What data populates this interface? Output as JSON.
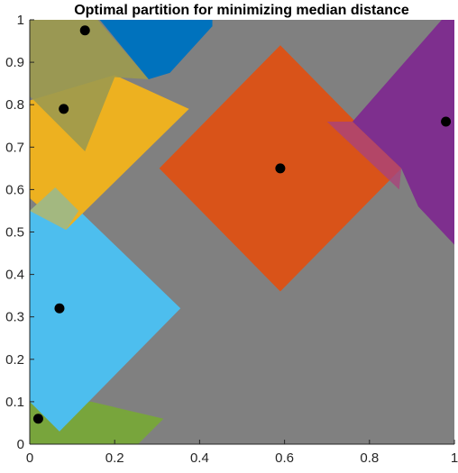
{
  "chart_data": {
    "type": "scatter",
    "title": "Optimal partition for minimizing median distance",
    "xlabel": "",
    "ylabel": "",
    "xlim": [
      0,
      1
    ],
    "ylim": [
      0,
      1
    ],
    "grid": false,
    "background_color": "#808080",
    "x_ticks": [
      0,
      0.2,
      0.4,
      0.6,
      0.8,
      1
    ],
    "x_tick_labels": [
      "0",
      "0.2",
      "0.4",
      "0.6",
      "0.8",
      "1"
    ],
    "y_ticks": [
      0,
      0.1,
      0.2,
      0.3,
      0.4,
      0.5,
      0.6,
      0.7,
      0.8,
      0.9,
      1
    ],
    "y_tick_labels": [
      "0",
      "0.1",
      "0.2",
      "0.3",
      "0.4",
      "0.5",
      "0.6",
      "0.7",
      "0.8",
      "0.9",
      "1"
    ],
    "points": [
      {
        "x": 0.13,
        "y": 0.975
      },
      {
        "x": 0.08,
        "y": 0.79
      },
      {
        "x": 0.59,
        "y": 0.65
      },
      {
        "x": 0.98,
        "y": 0.76
      },
      {
        "x": 0.07,
        "y": 0.32
      },
      {
        "x": 0.02,
        "y": 0.06
      }
    ],
    "regions": [
      {
        "color": "#77AC30",
        "opacity": 0.85,
        "vertices": [
          [
            0,
            0.1
          ],
          [
            0.145,
            0.1
          ],
          [
            0.315,
            0.06
          ],
          [
            0.255,
            0
          ],
          [
            0,
            0
          ]
        ]
      },
      {
        "color": "#4DBEEE",
        "opacity": 1.0,
        "vertices": [
          [
            0,
            0.55
          ],
          [
            0.06,
            0.605
          ],
          [
            0.355,
            0.32
          ],
          [
            0.07,
            0.03
          ],
          [
            0,
            0.1
          ]
        ]
      },
      {
        "color": "#EDB120",
        "opacity": 1.0,
        "vertices": [
          [
            0,
            0.81
          ],
          [
            0.2,
            0.87
          ],
          [
            0.375,
            0.79
          ],
          [
            0.085,
            0.505
          ],
          [
            0,
            0.58
          ]
        ]
      },
      {
        "color": "#9C9A4E",
        "opacity": 0.9,
        "vertices": [
          [
            0,
            1
          ],
          [
            0.16,
            1
          ],
          [
            0.28,
            0.86
          ],
          [
            0.2,
            0.865
          ],
          [
            0.13,
            0.69
          ],
          [
            0,
            0.82
          ]
        ]
      },
      {
        "color": "#A3B880",
        "opacity": 1.0,
        "vertices": [
          [
            0.0,
            0.55
          ],
          [
            0.06,
            0.605
          ],
          [
            0.115,
            0.55
          ],
          [
            0.085,
            0.505
          ]
        ]
      },
      {
        "color": "#0072BD",
        "opacity": 1.0,
        "vertices": [
          [
            0.165,
            1
          ],
          [
            0.43,
            1
          ],
          [
            0.43,
            0.985
          ],
          [
            0.33,
            0.875
          ],
          [
            0.28,
            0.86
          ]
        ]
      },
      {
        "color": "#D95319",
        "opacity": 1.0,
        "vertices": [
          [
            0.59,
            0.94
          ],
          [
            0.875,
            0.65
          ],
          [
            0.59,
            0.36
          ],
          [
            0.305,
            0.65
          ]
        ]
      },
      {
        "color": "#7E2F8E",
        "opacity": 1.0,
        "vertices": [
          [
            0.97,
            1
          ],
          [
            1,
            1
          ],
          [
            1,
            0.47
          ],
          [
            0.915,
            0.56
          ],
          [
            0.875,
            0.65
          ],
          [
            0.76,
            0.76
          ]
        ]
      },
      {
        "color": "#A9447A",
        "opacity": 0.8,
        "vertices": [
          [
            0.7,
            0.76
          ],
          [
            0.87,
            0.6
          ],
          [
            0.875,
            0.65
          ],
          [
            0.76,
            0.76
          ]
        ]
      }
    ]
  }
}
